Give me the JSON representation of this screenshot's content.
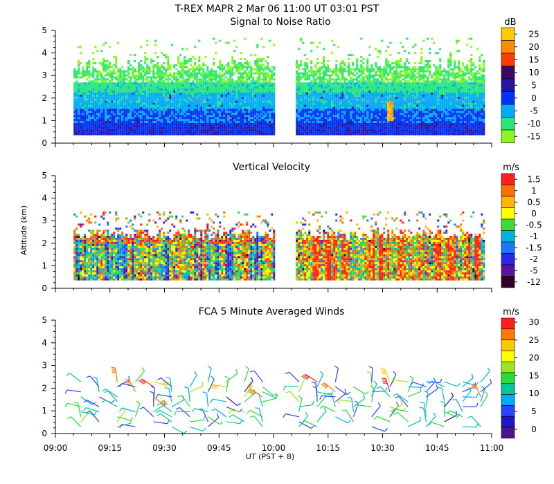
{
  "main_title": "T-REX  MAPR  2 Mar 06  11:00 UT  03:01  PST",
  "ylabel": "Altitude (km)",
  "xlabel": "UT  (PST + 8)",
  "x_ticks": [
    "09:00",
    "09:15",
    "09:30",
    "09:45",
    "10:00",
    "10:15",
    "10:30",
    "10:45",
    "11:00"
  ],
  "y_ticks": [
    "0",
    "1",
    "2",
    "3",
    "4",
    "5"
  ],
  "chart_data": [
    {
      "type": "heatmap",
      "title": "Signal to Noise Ratio",
      "unit": "dB",
      "x_range_minutes": [
        0,
        120
      ],
      "ylim": [
        0,
        5
      ],
      "data_gap_minutes": [
        60,
        66
      ],
      "data_start_minute": 5,
      "data_end_minute": 118,
      "colorbar": {
        "labels": [
          "25",
          "20",
          "15",
          "10",
          "5",
          "0",
          "-5",
          "-10",
          "-15"
        ],
        "colors": [
          "#ffc800",
          "#ff8c00",
          "#ff3c00",
          "#3c0a64",
          "#2814a0",
          "#0032ff",
          "#00aaff",
          "#28e678",
          "#8cf51e"
        ]
      }
    },
    {
      "type": "heatmap",
      "title": "Vertical Velocity",
      "unit": "m/s",
      "x_range_minutes": [
        0,
        120
      ],
      "ylim": [
        0,
        5
      ],
      "data_gap_minutes": [
        60,
        66
      ],
      "colorbar": {
        "labels": [
          "1.5",
          "1",
          "0.5",
          "0",
          "-0.5",
          "-1",
          "-1.5",
          "-2",
          "-5",
          "-12"
        ],
        "colors": [
          "#ff1e1e",
          "#ff6e00",
          "#ffb400",
          "#ffff00",
          "#3cdc3c",
          "#00b4dc",
          "#1e78ff",
          "#2828e6",
          "#5a14a0",
          "#320028"
        ]
      }
    },
    {
      "type": "scatter",
      "title": "FCA 5 Minute Averaged Winds",
      "unit": "m/s",
      "x_range_minutes": [
        0,
        120
      ],
      "ylim": [
        0,
        5
      ],
      "colorbar": {
        "labels": [
          "30",
          "25",
          "20",
          "15",
          "10",
          "5",
          "0"
        ],
        "colors": [
          "#ff1e1e",
          "#ff7800",
          "#ffc800",
          "#ffff00",
          "#9be61e",
          "#28dc3c",
          "#00c8a0",
          "#00aaff",
          "#2846ff",
          "#1e14c8",
          "#50148c"
        ]
      },
      "barb_times_minutes": [
        7,
        12,
        17,
        22,
        27,
        32,
        37,
        42,
        47,
        52,
        57,
        67,
        72,
        77,
        82,
        87,
        92,
        97,
        102,
        107,
        112,
        117
      ]
    }
  ]
}
